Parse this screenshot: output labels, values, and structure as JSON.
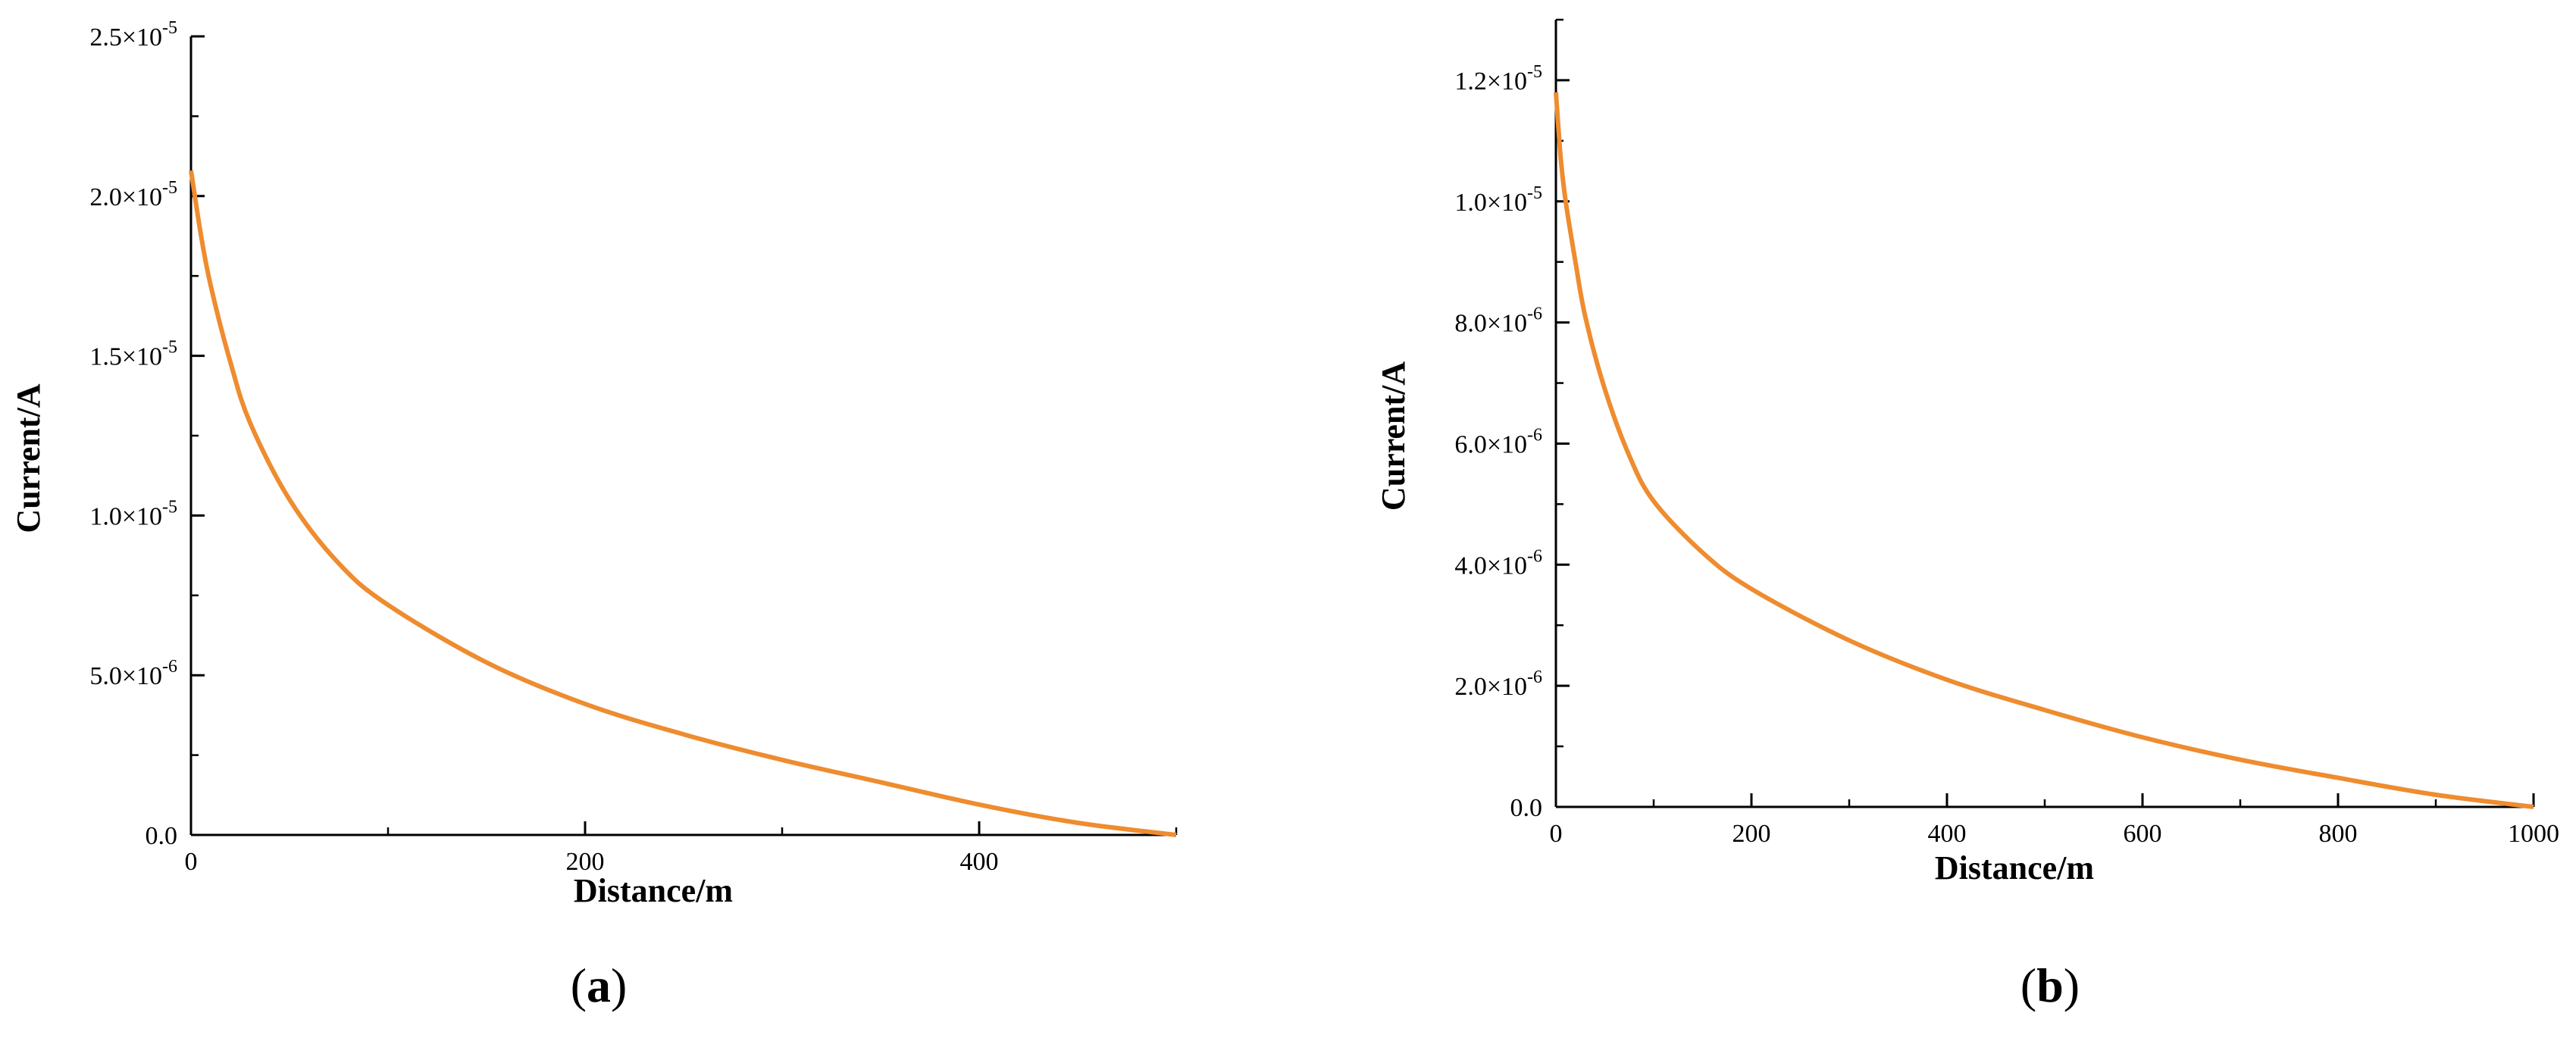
{
  "colors": {
    "series": "#EE8C2F",
    "axis": "#000000"
  },
  "chart_data": [
    {
      "type": "line",
      "panel_label": "a",
      "xlabel": "Distance/m",
      "ylabel": "Current/A",
      "xlim": [
        0,
        500
      ],
      "ylim": [
        0,
        2.5e-05
      ],
      "x_ticks": [
        {
          "value": 0,
          "label": "0"
        },
        {
          "value": 200,
          "label": "200"
        },
        {
          "value": 400,
          "label": "400"
        }
      ],
      "y_ticks": [
        {
          "value": 0,
          "mant": "0.0",
          "exp": ""
        },
        {
          "value": 5e-06,
          "mant": "5.0×10",
          "exp": "-6"
        },
        {
          "value": 1e-05,
          "mant": "1.0×10",
          "exp": "-5"
        },
        {
          "value": 1.5e-05,
          "mant": "1.5×10",
          "exp": "-5"
        },
        {
          "value": 2e-05,
          "mant": "2.0×10",
          "exp": "-5"
        },
        {
          "value": 2.5e-05,
          "mant": "2.5×10",
          "exp": "-5"
        }
      ],
      "x_minor_step": 100,
      "y_minor_step": 2.5e-06,
      "grid": false,
      "series": [
        {
          "x": [
            0,
            5,
            10,
            20,
            30,
            50,
            75,
            100,
            150,
            200,
            250,
            300,
            350,
            400,
            450,
            500
          ],
          "y": [
            2.08e-05,
            1.88e-05,
            1.72e-05,
            1.48e-05,
            1.29e-05,
            1.05e-05,
            8.5e-06,
            7.2e-06,
            5.4e-06,
            4.1e-06,
            3.15e-06,
            2.35e-06,
            1.65e-06,
            9.5e-07,
            3.8e-07,
            0
          ]
        }
      ]
    },
    {
      "type": "line",
      "panel_label": "b",
      "xlabel": "Distance/m",
      "ylabel": "Current/A",
      "xlim": [
        0,
        1000
      ],
      "ylim": [
        0,
        1.3e-05
      ],
      "x_ticks": [
        {
          "value": 0,
          "label": "0"
        },
        {
          "value": 200,
          "label": "200"
        },
        {
          "value": 400,
          "label": "400"
        },
        {
          "value": 600,
          "label": "600"
        },
        {
          "value": 800,
          "label": "800"
        },
        {
          "value": 1000,
          "label": "1000"
        }
      ],
      "y_ticks": [
        {
          "value": 0,
          "mant": "0.0",
          "exp": ""
        },
        {
          "value": 2e-06,
          "mant": "2.0×10",
          "exp": "-6"
        },
        {
          "value": 4e-06,
          "mant": "4.0×10",
          "exp": "-6"
        },
        {
          "value": 6e-06,
          "mant": "6.0×10",
          "exp": "-6"
        },
        {
          "value": 8e-06,
          "mant": "8.0×10",
          "exp": "-6"
        },
        {
          "value": 1e-05,
          "mant": "1.0×10",
          "exp": "-5"
        },
        {
          "value": 1.2e-05,
          "mant": "1.2×10",
          "exp": "-5"
        }
      ],
      "x_minor_step": 100,
      "y_minor_step": 1e-06,
      "grid": false,
      "series": [
        {
          "x": [
            0,
            5,
            10,
            20,
            30,
            50,
            75,
            100,
            150,
            200,
            300,
            400,
            500,
            600,
            700,
            800,
            900,
            1000
          ],
          "y": [
            1.18e-05,
            1.07e-05,
            1e-05,
            9e-06,
            8.1e-06,
            6.9e-06,
            5.8e-06,
            5.05e-06,
            4.2e-06,
            3.6e-06,
            2.75e-06,
            2.1e-06,
            1.6e-06,
            1.15e-06,
            7.8e-07,
            4.8e-07,
            2e-07,
            0
          ]
        }
      ]
    }
  ]
}
